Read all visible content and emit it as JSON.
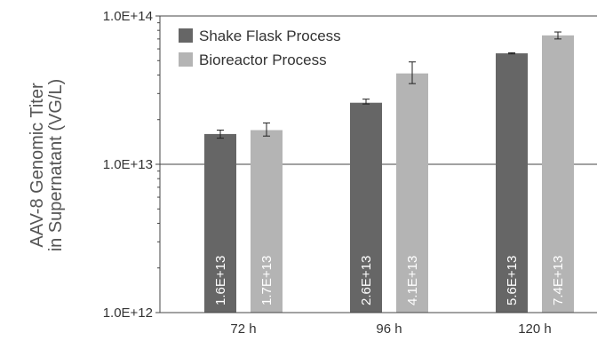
{
  "chart_data": {
    "type": "bar",
    "categories": [
      "72 h",
      "96 h",
      "120 h"
    ],
    "series": [
      {
        "name": "Shake Flask Process",
        "color": "#666666",
        "values": [
          16000000000000.0,
          26000000000000.0,
          56000000000000.0
        ],
        "error_low": [
          15000000000000.0,
          25500000000000.0,
          55500000000000.0
        ],
        "error_high": [
          17000000000000.0,
          27500000000000.0,
          56500000000000.0
        ],
        "labels": [
          "1.6E+13",
          "2.6E+13",
          "5.6E+13"
        ]
      },
      {
        "name": "Bioreactor Process",
        "color": "#b4b4b4",
        "values": [
          17000000000000.0,
          41000000000000.0,
          74000000000000.0
        ],
        "error_low": [
          15500000000000.0,
          35000000000000.0,
          70000000000000.0
        ],
        "error_high": [
          19000000000000.0,
          49000000000000.0,
          78000000000000.0
        ],
        "labels": [
          "1.7E+13",
          "4.1E+13",
          "7.4E+13"
        ]
      }
    ],
    "ylabel_line1": "AAV-8 Genomic Titer",
    "ylabel_line2": "in Supernatant (VG/L)",
    "yscale": "log",
    "ylim": [
      1000000000000.0,
      100000000000000.0
    ],
    "yticks": [
      {
        "value": 1000000000000.0,
        "label": "1.0E+12"
      },
      {
        "value": 10000000000000.0,
        "label": "1.0E+13"
      },
      {
        "value": 100000000000000.0,
        "label": "1.0E+14"
      }
    ],
    "legend_position": "top-left"
  }
}
